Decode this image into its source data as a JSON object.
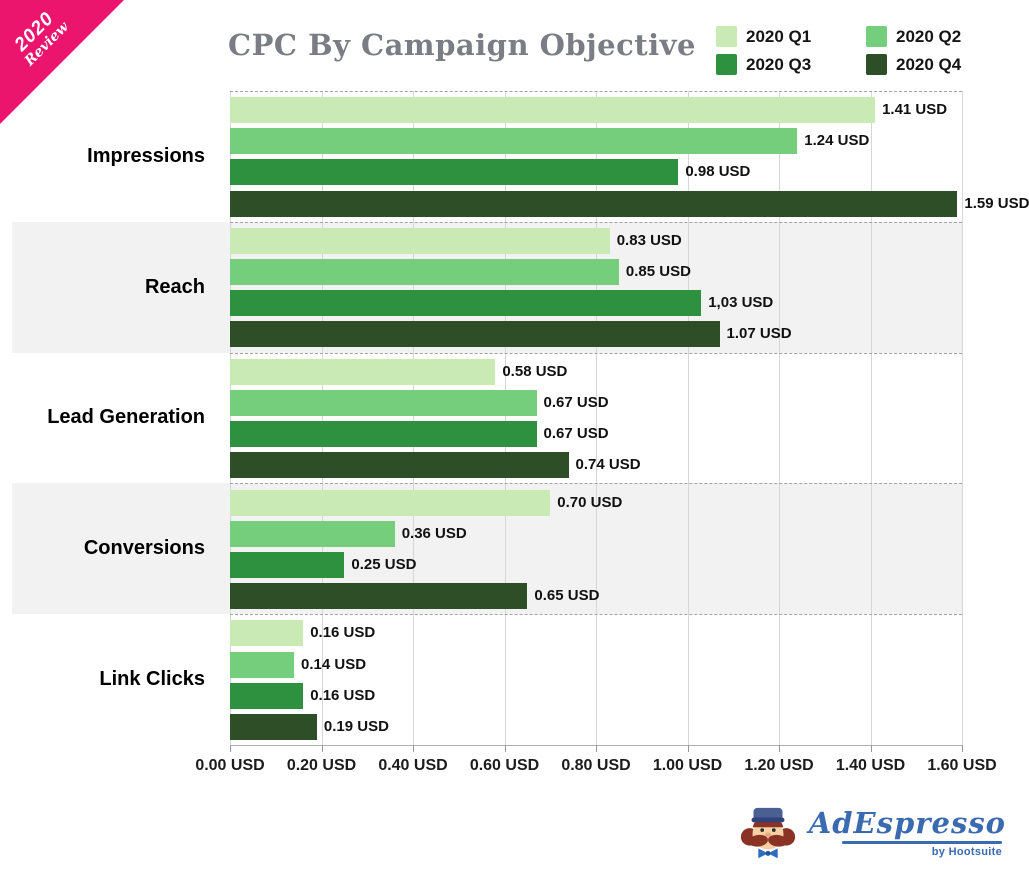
{
  "ribbon": {
    "line1": "2020",
    "line2": "Review",
    "color": "#ec156e"
  },
  "header": {
    "title": "CPC By Campaign Objective"
  },
  "logo": {
    "brand": "AdEspresso",
    "byline": "by Hootsuite"
  },
  "chart_data": {
    "type": "bar",
    "orientation": "horizontal",
    "title": "CPC By Campaign Objective",
    "categories": [
      "Impressions",
      "Reach",
      "Lead Generation",
      "Conversions",
      "Link Clicks"
    ],
    "series": [
      {
        "name": "2020 Q1",
        "color": "#c9e9b5",
        "values": [
          1.41,
          0.83,
          0.58,
          0.7,
          0.16
        ],
        "labels": [
          "1.41 USD",
          "0.83 USD",
          "0.58 USD",
          "0.70 USD",
          "0.16 USD"
        ]
      },
      {
        "name": "2020 Q2",
        "color": "#74ce7c",
        "values": [
          1.24,
          0.85,
          0.67,
          0.36,
          0.14
        ],
        "labels": [
          "1.24 USD",
          "0.85 USD",
          "0.67 USD",
          "0.36 USD",
          "0.14 USD"
        ]
      },
      {
        "name": "2020 Q3",
        "color": "#2e9140",
        "values": [
          0.98,
          1.03,
          0.67,
          0.25,
          0.16
        ],
        "labels": [
          "0.98 USD",
          "1,03 USD",
          "0.67 USD",
          "0.25 USD",
          "0.16 USD"
        ]
      },
      {
        "name": "2020 Q4",
        "color": "#2d4e26",
        "values": [
          1.59,
          1.07,
          0.74,
          0.65,
          0.19
        ],
        "labels": [
          "1.59 USD",
          "1.07 USD",
          "0.74 USD",
          "0.65 USD",
          "0.19 USD"
        ]
      }
    ],
    "xlim": [
      0,
      1.6
    ],
    "x_ticks": [
      "0.00 USD",
      "0.20 USD",
      "0.40 USD",
      "0.60 USD",
      "0.80 USD",
      "1.00 USD",
      "1.20 USD",
      "1.40 USD",
      "1.60 USD"
    ],
    "striped_row_indices": [
      1,
      3
    ],
    "grid": "vertical-solid, group-separators-dashed",
    "legend_position": "top-right",
    "value_unit": "USD"
  }
}
